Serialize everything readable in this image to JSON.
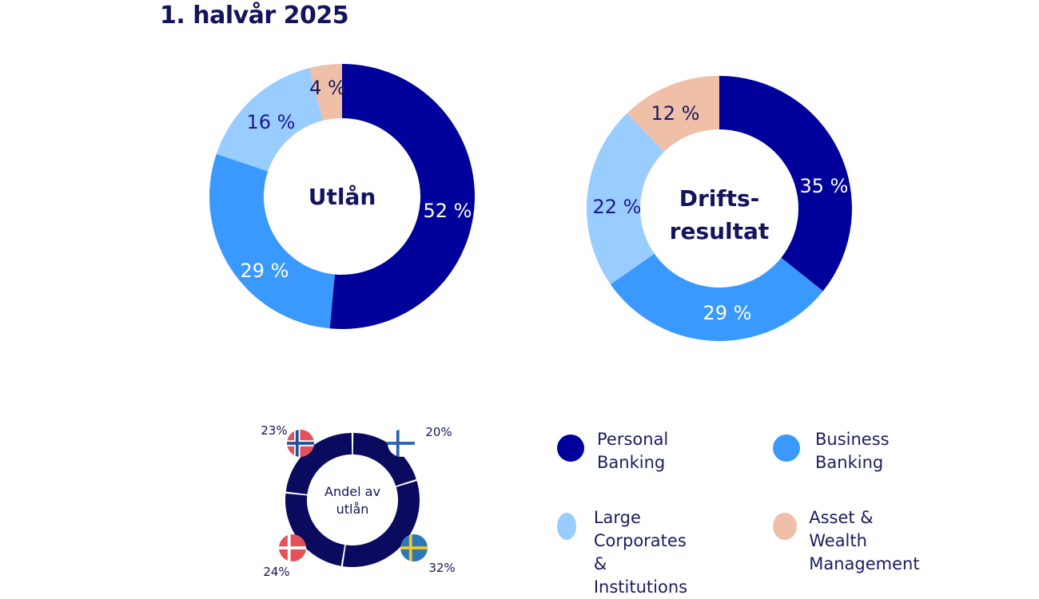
{
  "header": {
    "title": "1. halvår 2025"
  },
  "colors": {
    "personal_banking": "#00009a",
    "business_banking": "#3a99ff",
    "large_corporates": "#99ccff",
    "asset_wealth": "#efbfa8",
    "country_ring": "#0a0a5e"
  },
  "chart_data": [
    {
      "type": "pie",
      "variant": "donut",
      "center_label": "Utlån",
      "categories": [
        "Personal Banking",
        "Business Banking",
        "Large Corporates & Institutions",
        "Asset & Wealth Management"
      ],
      "values": [
        52,
        29,
        16,
        4
      ],
      "labels": [
        "52 %",
        "29 %",
        "16 %",
        "4 %"
      ],
      "start": "top",
      "direction": "clockwise"
    },
    {
      "type": "pie",
      "variant": "donut",
      "center_label": "Drifts-\nresultat",
      "center_label_lines": [
        "Drifts-",
        "resultat"
      ],
      "categories": [
        "Personal Banking",
        "Business Banking",
        "Large Corporates & Institutions",
        "Asset & Wealth Management"
      ],
      "values": [
        35,
        29,
        22,
        12
      ],
      "labels": [
        "35 %",
        "29 %",
        "22 %",
        "12 %"
      ],
      "start": "top",
      "direction": "clockwise"
    },
    {
      "type": "pie",
      "variant": "donut",
      "center_label_lines": [
        "Andel av",
        "utlån"
      ],
      "categories": [
        "Finland",
        "Sverige",
        "Danmark",
        "Norge"
      ],
      "values": [
        20,
        32,
        24,
        23
      ],
      "labels": [
        "20%",
        "32%",
        "24%",
        "23%"
      ],
      "flags": [
        "finland-flag",
        "sweden-flag",
        "denmark-flag",
        "norway-flag"
      ],
      "start": "top",
      "direction": "clockwise"
    }
  ],
  "legend": {
    "items": [
      {
        "label": "Personal\nBanking",
        "color_key": "personal_banking"
      },
      {
        "label": "Business\nBanking",
        "color_key": "business_banking"
      },
      {
        "label": "Large Corporates\n& Institutions",
        "color_key": "large_corporates"
      },
      {
        "label": "Asset & Wealth\nManagement",
        "color_key": "asset_wealth"
      }
    ]
  }
}
